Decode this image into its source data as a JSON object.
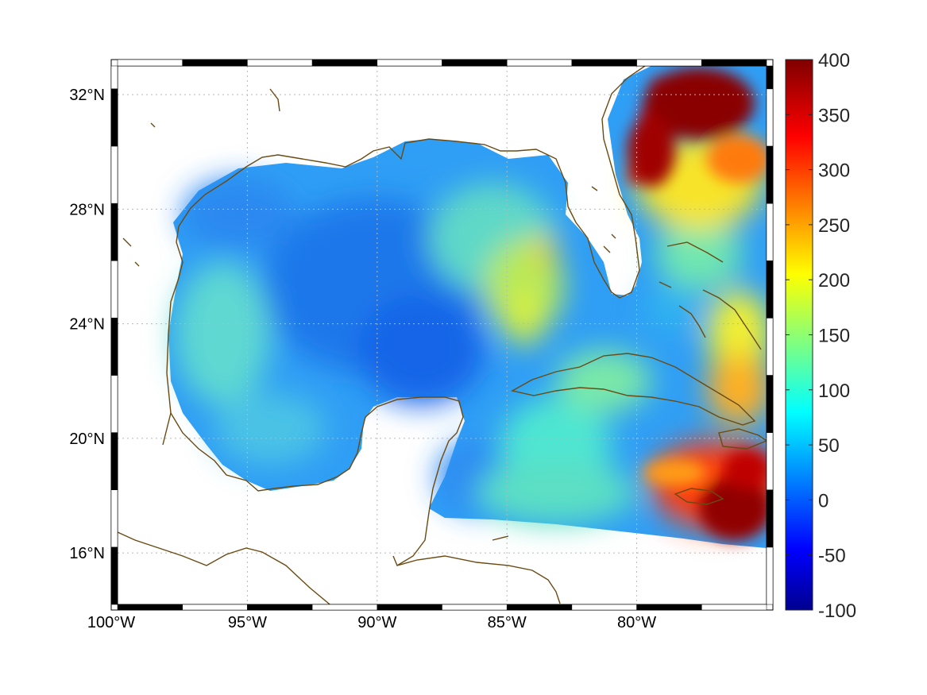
{
  "map": {
    "lon_range": [
      -100,
      -75
    ],
    "lat_range": [
      14.2,
      33.0
    ],
    "lon_ticks": [
      {
        "value": -100,
        "label": "100°W"
      },
      {
        "value": -95,
        "label": "95°W"
      },
      {
        "value": -90,
        "label": "90°W"
      },
      {
        "value": -85,
        "label": "85°W"
      },
      {
        "value": -80,
        "label": "80°W"
      }
    ],
    "lat_ticks": [
      {
        "value": 16,
        "label": "16°N"
      },
      {
        "value": 20,
        "label": "20°N"
      },
      {
        "value": 24,
        "label": "24°N"
      },
      {
        "value": 28,
        "label": "28°N"
      },
      {
        "value": 32,
        "label": "32°N"
      }
    ],
    "grid": true,
    "coastline_color": "#6b4a12",
    "colormap": "jet"
  },
  "colorbar": {
    "min": -100,
    "max": 400,
    "ticks": [
      {
        "value": 400,
        "label": "400"
      },
      {
        "value": 350,
        "label": "350"
      },
      {
        "value": 300,
        "label": "300"
      },
      {
        "value": 250,
        "label": "250"
      },
      {
        "value": 200,
        "label": "200"
      },
      {
        "value": 150,
        "label": "150"
      },
      {
        "value": 100,
        "label": "100"
      },
      {
        "value": 50,
        "label": "50"
      },
      {
        "value": 0,
        "label": "0"
      },
      {
        "value": -50,
        "label": "-50"
      },
      {
        "value": -100,
        "label": "-100"
      }
    ],
    "colors": [
      "#00008f",
      "#0000ff",
      "#00ffff",
      "#ffff00",
      "#ff0000",
      "#800000"
    ]
  }
}
